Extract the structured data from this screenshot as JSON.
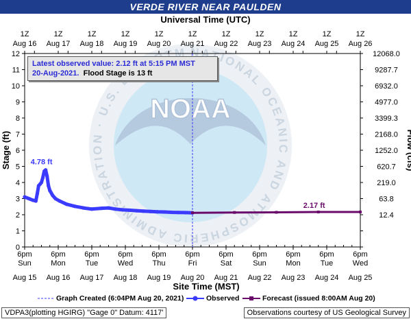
{
  "title": "VERDE RIVER NEAR PAULDEN",
  "top_axis_label": "Universal Time (UTC)",
  "bottom_axis_label": "Site Time (MST)",
  "left_axis_label": "Stage (ft)",
  "right_axis_label": "Flow (cfs)",
  "info": {
    "line1": "Latest observed value: 2.12  ft at 5:15 PM MST",
    "line2_date": "20-Aug-2021.",
    "line2_flood": "Flood Stage is 13  ft"
  },
  "legend": {
    "graph_created": "Graph Created (6:04PM Aug 20, 2021)",
    "observed": "Observed",
    "forecast": "Forecast (issued 8:00AM Aug 20)"
  },
  "footer": {
    "left": "VDPA3(plotting HGIRG) \"Gage 0\" Datum: 4117'",
    "right": "Observations courtesy of US Geological Survey"
  },
  "watermark": {
    "logo_text": "NOAA",
    "ring_text": "NATIONAL OCEANIC AND ATMOSPHERIC ADMINISTRATION · U.S. DEPARTMENT OF COMMERCE"
  },
  "colors": {
    "title_bg": "#1e3d8c",
    "observed": "#3b3bff",
    "forecast": "#6a0a6a",
    "peak_label": "#3b3bff",
    "now_line": "#3b3bff"
  },
  "chart_data": {
    "type": "line",
    "title": "VERDE RIVER NEAR PAULDEN",
    "ylabel": "Stage (ft)",
    "y2label": "Flow (cfs)",
    "xlabel": "Site Time (MST)",
    "x2label": "Universal Time (UTC)",
    "ylim": [
      0,
      12
    ],
    "xlim_hours": [
      0,
      240
    ],
    "y_ticks": [
      0,
      1,
      2,
      3,
      4,
      5,
      6,
      7,
      8,
      9,
      10,
      11,
      12
    ],
    "right_ticks": [
      "12068.0",
      "9287.7",
      "6932.0",
      "4977.0",
      "3399.3",
      "2168.0",
      "1252.0",
      "620.7",
      "219.0",
      "63.8",
      "12.4"
    ],
    "right_tick_stages": [
      12,
      11,
      10,
      9,
      8,
      7,
      6,
      5,
      4,
      3,
      2
    ],
    "bottom_ticks_top": [
      "6pm",
      "6pm",
      "6pm",
      "6pm",
      "6pm",
      "6pm",
      "6pm",
      "6pm",
      "6pm",
      "6pm",
      "6pm"
    ],
    "bottom_ticks_day": [
      "Sun",
      "Mon",
      "Tue",
      "Wed",
      "Thu",
      "Fri",
      "Sat",
      "Sun",
      "Mon",
      "Tue",
      "Wed"
    ],
    "bottom_ticks_date": [
      "Aug 15",
      "Aug 16",
      "Aug 17",
      "Aug 18",
      "Aug 19",
      "Aug 20",
      "Aug 21",
      "Aug 22",
      "Aug 23",
      "Aug 24",
      "Aug 25"
    ],
    "top_ticks_time": [
      "1Z",
      "1Z",
      "1Z",
      "1Z",
      "1Z",
      "1Z",
      "1Z",
      "1Z",
      "1Z",
      "1Z",
      "1Z"
    ],
    "top_ticks_date": [
      "Aug 16",
      "Aug 17",
      "Aug 18",
      "Aug 19",
      "Aug 20",
      "Aug 21",
      "Aug 22",
      "Aug 23",
      "Aug 24",
      "Aug 25",
      "Aug 26"
    ],
    "now_hour": 120,
    "peak_label": "4.78 ft",
    "peak_point": {
      "hour": 15,
      "stage": 4.78
    },
    "forecast_label": "2.17 ft",
    "forecast_label_point": {
      "hour": 208,
      "stage": 2.17
    },
    "series": [
      {
        "name": "Observed",
        "x_hours": [
          0,
          3,
          6,
          8,
          9,
          10,
          11,
          12,
          13,
          14,
          15,
          16,
          17,
          18,
          20,
          22,
          25,
          30,
          36,
          42,
          48,
          55,
          60,
          65,
          70,
          75,
          80,
          85,
          90,
          95,
          100,
          105,
          110,
          115,
          120
        ],
        "stage": [
          3.1,
          3.0,
          2.9,
          2.85,
          3.3,
          3.8,
          3.9,
          4.0,
          4.3,
          4.7,
          4.78,
          4.4,
          3.8,
          3.5,
          3.2,
          3.0,
          2.85,
          2.65,
          2.52,
          2.42,
          2.35,
          2.4,
          2.42,
          2.35,
          2.3,
          2.28,
          2.25,
          2.22,
          2.2,
          2.18,
          2.17,
          2.15,
          2.14,
          2.13,
          2.12
        ]
      },
      {
        "name": "Forecast",
        "x_hours": [
          120,
          150,
          180,
          210,
          240
        ],
        "stage": [
          2.12,
          2.14,
          2.15,
          2.17,
          2.17
        ]
      }
    ]
  }
}
